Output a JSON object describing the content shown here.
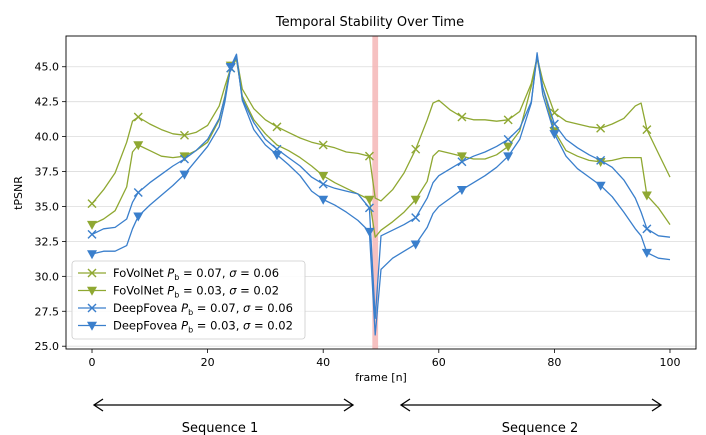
{
  "chart_data": {
    "type": "line",
    "title": "Temporal Stability Over Time",
    "xlabel": "frame [n]",
    "ylabel": "tPSNR",
    "xlim": [
      -4.5,
      104.5
    ],
    "ylim": [
      24.8,
      47.2
    ],
    "xticks": [
      0,
      20,
      40,
      60,
      80,
      100
    ],
    "yticks": [
      25.0,
      27.5,
      30.0,
      32.5,
      35.0,
      37.5,
      40.0,
      42.5,
      45.0
    ],
    "ytick_labels": [
      "25.0",
      "27.5",
      "30.0",
      "32.5",
      "35.0",
      "37.5",
      "40.0",
      "42.5",
      "45.0"
    ],
    "grid": "y",
    "highlight_frame": 49,
    "highlight_color": "#f4b6b6",
    "legend_position": "lower-left",
    "series": [
      {
        "name": "FoVolNet",
        "legend_parts": [
          "FoVolNet ",
          "P",
          "b",
          " = 0.07, ",
          "σ",
          " = 0.06"
        ],
        "color": "#8fa832",
        "marker": "x",
        "x": [
          0,
          2,
          4,
          6,
          7,
          8,
          10,
          12,
          14,
          16,
          18,
          20,
          22,
          23,
          24,
          25,
          26,
          28,
          30,
          32,
          34,
          36,
          38,
          40,
          42,
          44,
          46,
          48,
          49,
          50,
          52,
          54,
          56,
          58,
          59,
          60,
          62,
          64,
          66,
          68,
          70,
          72,
          74,
          76,
          77,
          78,
          80,
          82,
          84,
          86,
          88,
          90,
          92,
          94,
          95,
          96,
          98,
          100
        ],
        "values": [
          35.2,
          36.2,
          37.4,
          39.6,
          41.1,
          41.4,
          40.9,
          40.5,
          40.2,
          40.1,
          40.3,
          40.8,
          42.2,
          43.6,
          44.9,
          45.7,
          43.4,
          42.0,
          41.2,
          40.7,
          40.3,
          39.9,
          39.6,
          39.4,
          39.2,
          38.9,
          38.8,
          38.6,
          35.6,
          35.4,
          36.2,
          37.4,
          39.1,
          41.2,
          42.4,
          42.6,
          41.9,
          41.4,
          41.2,
          41.2,
          41.1,
          41.2,
          41.8,
          43.8,
          45.7,
          44.0,
          41.7,
          41.1,
          40.9,
          40.7,
          40.6,
          40.9,
          41.3,
          42.2,
          42.4,
          40.5,
          38.8,
          37.1
        ],
        "marker_x": [
          0,
          8,
          16,
          24,
          32,
          40,
          48,
          56,
          64,
          72,
          80,
          88,
          96
        ]
      },
      {
        "name": "FoVolNet",
        "legend_parts": [
          "FoVolNet ",
          "P",
          "b",
          " = 0.03, ",
          "σ",
          " = 0.02"
        ],
        "color": "#8fa832",
        "marker": "triangle-down",
        "x": [
          0,
          2,
          4,
          6,
          7,
          8,
          10,
          12,
          14,
          16,
          18,
          20,
          22,
          23,
          24,
          25,
          26,
          28,
          30,
          32,
          34,
          36,
          38,
          40,
          42,
          44,
          46,
          48,
          49,
          50,
          52,
          54,
          56,
          58,
          59,
          60,
          62,
          64,
          66,
          68,
          70,
          72,
          74,
          76,
          77,
          78,
          80,
          82,
          84,
          86,
          88,
          90,
          92,
          94,
          95,
          96,
          98,
          100
        ],
        "values": [
          33.7,
          34.1,
          34.7,
          36.4,
          38.9,
          39.4,
          39.0,
          38.6,
          38.5,
          38.6,
          39.0,
          39.6,
          41.2,
          42.9,
          45.1,
          45.5,
          42.9,
          41.2,
          40.2,
          39.4,
          39.0,
          38.5,
          37.9,
          37.2,
          36.7,
          36.3,
          35.9,
          35.5,
          32.8,
          33.3,
          33.9,
          34.6,
          35.5,
          36.8,
          38.6,
          39.0,
          38.8,
          38.6,
          38.4,
          38.4,
          38.7,
          39.3,
          40.4,
          43.6,
          45.6,
          43.5,
          40.4,
          39.0,
          38.6,
          38.3,
          38.2,
          38.3,
          38.5,
          38.5,
          38.5,
          35.8,
          34.9,
          33.7
        ],
        "marker_x": [
          0,
          8,
          16,
          24,
          40,
          48,
          56,
          64,
          72,
          80,
          88,
          96
        ]
      },
      {
        "name": "DeepFovea",
        "legend_parts": [
          "DeepFovea ",
          "P",
          "b",
          " = 0.07, ",
          "σ",
          " = 0.06"
        ],
        "color": "#3a7fcc",
        "marker": "x",
        "x": [
          0,
          2,
          4,
          6,
          7,
          8,
          10,
          12,
          14,
          16,
          18,
          20,
          22,
          23,
          24,
          25,
          26,
          28,
          30,
          32,
          34,
          36,
          38,
          40,
          42,
          44,
          46,
          48,
          49,
          50,
          52,
          54,
          56,
          58,
          59,
          60,
          62,
          64,
          66,
          68,
          70,
          72,
          74,
          76,
          77,
          78,
          80,
          82,
          84,
          86,
          88,
          90,
          92,
          94,
          95,
          96,
          98,
          100
        ],
        "values": [
          33.0,
          33.4,
          33.5,
          34.1,
          35.3,
          36.0,
          36.7,
          37.3,
          37.9,
          38.4,
          39.0,
          39.8,
          41.3,
          42.8,
          44.9,
          45.7,
          42.7,
          41.0,
          39.8,
          39.1,
          38.5,
          37.9,
          37.1,
          36.6,
          36.3,
          36.1,
          35.9,
          34.9,
          27.0,
          32.9,
          33.3,
          33.7,
          34.2,
          35.6,
          36.7,
          37.2,
          37.7,
          38.2,
          38.6,
          38.9,
          39.3,
          39.8,
          40.6,
          42.5,
          45.8,
          43.5,
          40.9,
          39.8,
          39.2,
          38.7,
          38.3,
          37.8,
          36.9,
          35.6,
          34.6,
          33.4,
          32.9,
          32.8
        ],
        "marker_x": [
          0,
          8,
          16,
          24,
          32,
          40,
          48,
          56,
          64,
          72,
          80,
          88,
          96
        ]
      },
      {
        "name": "DeepFovea",
        "legend_parts": [
          "DeepFovea ",
          "P",
          "b",
          " = 0.03, ",
          "σ",
          " = 0.02"
        ],
        "color": "#3a7fcc",
        "marker": "triangle-down",
        "x": [
          0,
          2,
          4,
          6,
          7,
          8,
          10,
          12,
          14,
          16,
          18,
          20,
          22,
          23,
          24,
          25,
          26,
          28,
          30,
          32,
          34,
          36,
          38,
          40,
          42,
          44,
          46,
          48,
          49,
          50,
          52,
          54,
          56,
          58,
          59,
          60,
          62,
          64,
          66,
          68,
          70,
          72,
          74,
          76,
          77,
          78,
          80,
          82,
          84,
          86,
          88,
          90,
          92,
          94,
          95,
          96,
          98,
          100
        ],
        "values": [
          31.6,
          31.8,
          31.8,
          32.2,
          33.4,
          34.3,
          35.1,
          35.8,
          36.5,
          37.3,
          38.3,
          39.3,
          40.7,
          42.5,
          45.0,
          45.9,
          42.6,
          40.5,
          39.4,
          38.7,
          38.0,
          37.2,
          36.1,
          35.5,
          35.1,
          34.6,
          34.0,
          33.2,
          25.8,
          30.5,
          31.3,
          31.8,
          32.3,
          33.5,
          34.5,
          35.0,
          35.6,
          36.2,
          36.7,
          37.2,
          37.8,
          38.6,
          39.8,
          42.4,
          46.0,
          43.0,
          40.2,
          38.6,
          37.7,
          37.1,
          36.5,
          35.7,
          34.6,
          33.4,
          32.9,
          31.7,
          31.3,
          31.2
        ],
        "marker_x": [
          0,
          8,
          16,
          24,
          32,
          40,
          48,
          56,
          64,
          72,
          80,
          88,
          96
        ]
      }
    ],
    "sequences": [
      "Sequence 1",
      "Sequence 2"
    ]
  }
}
